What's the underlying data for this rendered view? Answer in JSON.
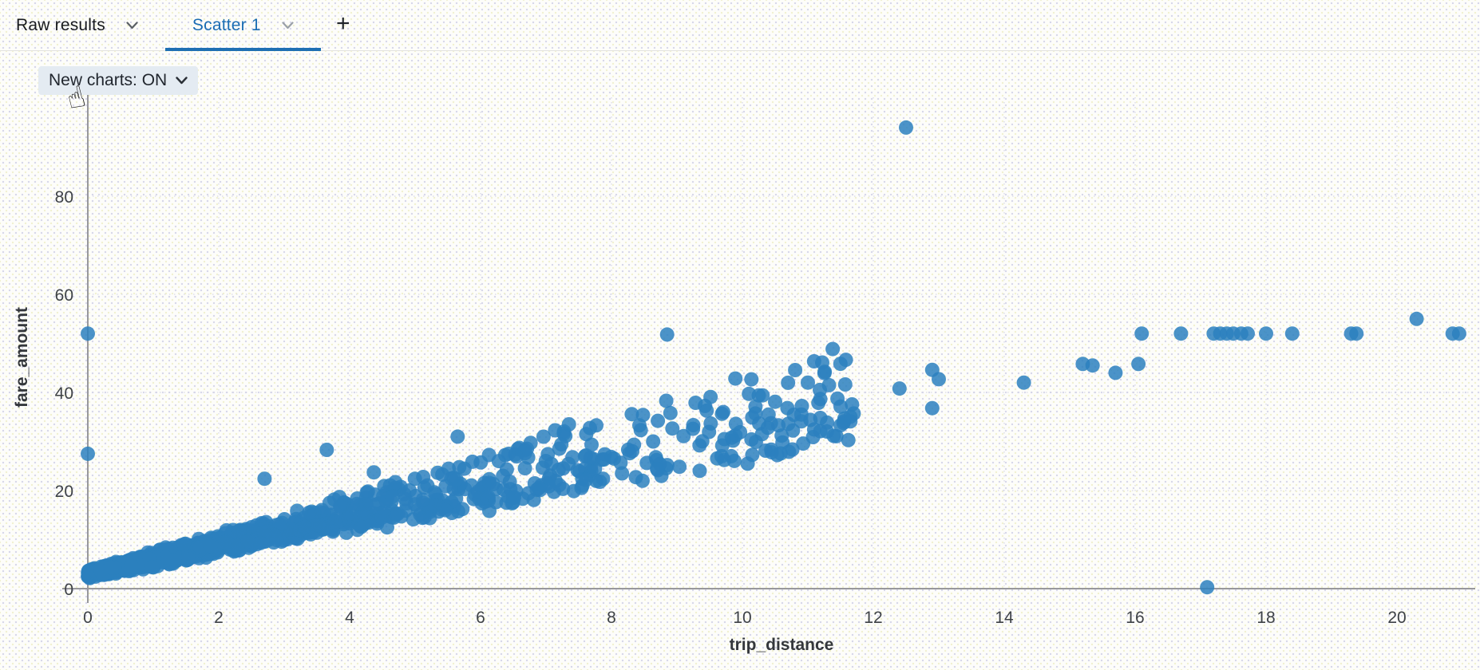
{
  "header": {
    "tabs": [
      {
        "label": "Raw results",
        "active": false
      },
      {
        "label": "Scatter 1",
        "active": true
      }
    ],
    "add_tab_label": "+"
  },
  "controls": {
    "new_charts": {
      "label": "New charts: ON",
      "state": "ON"
    }
  },
  "cursor": {
    "glyph": "☝"
  },
  "colors": {
    "accent_blue": "#1a6cb4",
    "tab_underline": "#1e6fb3",
    "pill_bg": "#e4ebf2",
    "axis_line": "#98989c",
    "tick_text": "#3e4247",
    "axis_title": "#34373c",
    "gridline": "#cfcfe2",
    "marker_blue": "#2b80be"
  },
  "chart_data": {
    "type": "scatter",
    "title": "",
    "xlabel": "trip_distance",
    "ylabel": "fare_amount",
    "xlim": [
      0,
      21.2
    ],
    "ylim": [
      0,
      99
    ],
    "x_ticks": [
      0,
      2,
      4,
      6,
      8,
      10,
      12,
      14,
      16,
      18,
      20
    ],
    "y_ticks": [
      0,
      20,
      40,
      60,
      80
    ],
    "grid": "dotted-at-ticks",
    "legend": "none",
    "marker": {
      "color": "#2b80be",
      "opacity": 0.85,
      "radius": 9
    },
    "points": [
      [
        0,
        52
      ],
      [
        0,
        27.5
      ],
      [
        2.7,
        22.4
      ],
      [
        3.65,
        28.3
      ],
      [
        4.37,
        23.7
      ],
      [
        5.65,
        31
      ],
      [
        7.35,
        33.5
      ],
      [
        8.85,
        51.8
      ],
      [
        8.9,
        35.8
      ],
      [
        9.9,
        33.6
      ],
      [
        10.1,
        39.7
      ],
      [
        10.25,
        39.4
      ],
      [
        10.2,
        37.1
      ],
      [
        10.2,
        35.7
      ],
      [
        10.15,
        34.9
      ],
      [
        10.5,
        38.1
      ],
      [
        10.4,
        35.5
      ],
      [
        10.9,
        35.5
      ],
      [
        10.9,
        34.1
      ],
      [
        10.7,
        33.6
      ],
      [
        10.55,
        33.3
      ],
      [
        10.3,
        31.5
      ],
      [
        10.6,
        31.2
      ],
      [
        11.5,
        37.1
      ],
      [
        11.7,
        35.7
      ],
      [
        11.65,
        34.1
      ],
      [
        11.5,
        33.3
      ],
      [
        12.4,
        40.8
      ],
      [
        12.9,
        44.6
      ],
      [
        13.0,
        42.7
      ],
      [
        12.9,
        36.8
      ],
      [
        14.3,
        42
      ],
      [
        15.2,
        45.8
      ],
      [
        15.35,
        45.5
      ],
      [
        15.7,
        44
      ],
      [
        16.05,
        45.8
      ],
      [
        16.1,
        52
      ],
      [
        16.7,
        52
      ],
      [
        17.2,
        52
      ],
      [
        17.3,
        52
      ],
      [
        17.4,
        52
      ],
      [
        17.5,
        52
      ],
      [
        17.62,
        52
      ],
      [
        17.72,
        52
      ],
      [
        18.0,
        52
      ],
      [
        18.4,
        52
      ],
      [
        19.3,
        52
      ],
      [
        19.38,
        52
      ],
      [
        20.85,
        52
      ],
      [
        20.95,
        52
      ],
      [
        20.3,
        55
      ],
      [
        12.5,
        94
      ],
      [
        17.1,
        0.3
      ]
    ],
    "dense_cloud": {
      "description": "dense linear cloud fare ~ 2.4 + (2.35..4.0)*distance, densest near 0, thinning out to x=11.7",
      "seed": 7,
      "groups": [
        {
          "n": 650,
          "x_dist": "exp",
          "scale": 1.3,
          "x_max": 11.7
        },
        {
          "n": 420,
          "x_dist": "exp",
          "scale": 2.8,
          "x_max": 11.7
        },
        {
          "n": 280,
          "x_dist": "uniform",
          "x_min": 0,
          "x_max": 11.7
        }
      ],
      "base": 2.4,
      "base_jitter": 1.2,
      "slope_min": 2.35,
      "slope_range": 1.65,
      "slope_pow": 1.7,
      "noise": 1.0
    }
  }
}
